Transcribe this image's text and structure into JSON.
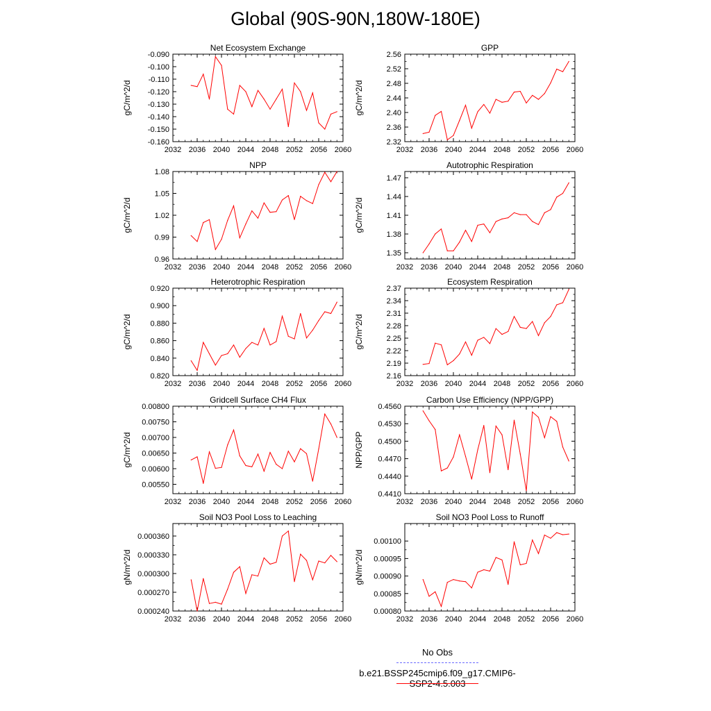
{
  "title": "Global (90S-90N,180W-180E)",
  "legend": {
    "obs_label": "No Obs",
    "obs_color": "#6a6aff",
    "run_label": "b.e21.BSSP245cmip6.f09_g17.CMIP6-SSP2-4.5.003",
    "run_color": "#ff0000"
  },
  "chart_data": [
    {
      "type": "line",
      "title": "Net Ecosystem Exchange",
      "ylabel": "gC/m^2/d",
      "xlim": [
        2032,
        2060
      ],
      "xticks": [
        "2032",
        "2036",
        "2040",
        "2044",
        "2048",
        "2052",
        "2056",
        "2060"
      ],
      "ylim": [
        -0.16,
        -0.09
      ],
      "yticks": [
        "-0.090",
        "-0.100",
        "-0.110",
        "-0.120",
        "-0.130",
        "-0.140",
        "-0.150",
        "-0.160"
      ],
      "x": [
        2035,
        2036,
        2037,
        2038,
        2039,
        2040,
        2041,
        2042,
        2043,
        2044,
        2045,
        2046,
        2047,
        2048,
        2049,
        2050,
        2051,
        2052,
        2053,
        2054,
        2055,
        2056,
        2057,
        2058,
        2059
      ],
      "series": [
        {
          "values": [
            -0.115,
            -0.116,
            -0.106,
            -0.126,
            -0.092,
            -0.099,
            -0.134,
            -0.138,
            -0.115,
            -0.12,
            -0.132,
            -0.119,
            -0.126,
            -0.134,
            -0.126,
            -0.118,
            -0.148,
            -0.113,
            -0.12,
            -0.135,
            -0.121,
            -0.145,
            -0.15,
            -0.138,
            -0.136
          ],
          "color": "#ff0000"
        }
      ]
    },
    {
      "type": "line",
      "title": "GPP",
      "ylabel": "gC/m^2/d",
      "xlim": [
        2032,
        2060
      ],
      "xticks": [
        "2032",
        "2036",
        "2040",
        "2044",
        "2048",
        "2052",
        "2056",
        "2060"
      ],
      "ylim": [
        2.32,
        2.56
      ],
      "yticks": [
        "2.56",
        "2.52",
        "2.48",
        "2.44",
        "2.40",
        "2.36",
        "2.32"
      ],
      "x": [
        2035,
        2036,
        2037,
        2038,
        2039,
        2040,
        2041,
        2042,
        2043,
        2044,
        2045,
        2046,
        2047,
        2048,
        2049,
        2050,
        2051,
        2052,
        2053,
        2054,
        2055,
        2056,
        2057,
        2058,
        2059
      ],
      "series": [
        {
          "values": [
            2.342,
            2.346,
            2.392,
            2.403,
            2.325,
            2.337,
            2.378,
            2.42,
            2.357,
            2.402,
            2.422,
            2.398,
            2.436,
            2.428,
            2.431,
            2.456,
            2.458,
            2.426,
            2.447,
            2.436,
            2.452,
            2.481,
            2.519,
            2.512,
            2.54
          ],
          "color": "#ff0000"
        }
      ]
    },
    {
      "type": "line",
      "title": "NPP",
      "ylabel": "gC/m^2/d",
      "xlim": [
        2032,
        2060
      ],
      "xticks": [
        "2032",
        "2036",
        "2040",
        "2044",
        "2048",
        "2052",
        "2056",
        "2060"
      ],
      "ylim": [
        0.96,
        1.08
      ],
      "yticks": [
        "1.08",
        "1.05",
        "1.02",
        "0.99",
        "0.96"
      ],
      "x": [
        2035,
        2036,
        2037,
        2038,
        2039,
        2040,
        2041,
        2042,
        2043,
        2044,
        2045,
        2046,
        2047,
        2048,
        2049,
        2050,
        2051,
        2052,
        2053,
        2054,
        2055,
        2056,
        2057,
        2058,
        2059
      ],
      "series": [
        {
          "values": [
            0.992,
            0.984,
            1.01,
            1.014,
            0.973,
            0.987,
            1.013,
            1.033,
            0.989,
            1.008,
            1.026,
            1.016,
            1.037,
            1.024,
            1.025,
            1.041,
            1.047,
            1.014,
            1.046,
            1.04,
            1.036,
            1.062,
            1.079,
            1.066,
            1.08
          ],
          "color": "#ff0000"
        }
      ]
    },
    {
      "type": "line",
      "title": "Autotrophic Respiration",
      "ylabel": "gC/m^2/d",
      "xlim": [
        2032,
        2060
      ],
      "xticks": [
        "2032",
        "2036",
        "2040",
        "2044",
        "2048",
        "2052",
        "2056",
        "2060"
      ],
      "ylim": [
        1.34,
        1.48
      ],
      "yticks": [
        "1.47",
        "1.44",
        "1.41",
        "1.38",
        "1.35"
      ],
      "x": [
        2035,
        2036,
        2037,
        2038,
        2039,
        2040,
        2041,
        2042,
        2043,
        2044,
        2045,
        2046,
        2047,
        2048,
        2049,
        2050,
        2051,
        2052,
        2053,
        2054,
        2055,
        2056,
        2057,
        2058,
        2059
      ],
      "series": [
        {
          "values": [
            1.35,
            1.364,
            1.38,
            1.388,
            1.353,
            1.353,
            1.367,
            1.386,
            1.368,
            1.394,
            1.396,
            1.382,
            1.4,
            1.404,
            1.406,
            1.414,
            1.411,
            1.411,
            1.4,
            1.395,
            1.414,
            1.419,
            1.439,
            1.445,
            1.462
          ],
          "color": "#ff0000"
        }
      ]
    },
    {
      "type": "line",
      "title": "Heterotrophic Respiration",
      "ylabel": "gC/m^2/d",
      "xlim": [
        2032,
        2060
      ],
      "xticks": [
        "2032",
        "2036",
        "2040",
        "2044",
        "2048",
        "2052",
        "2056",
        "2060"
      ],
      "ylim": [
        0.82,
        0.92
      ],
      "yticks": [
        "0.920",
        "0.900",
        "0.880",
        "0.860",
        "0.840",
        "0.820"
      ],
      "x": [
        2035,
        2036,
        2037,
        2038,
        2039,
        2040,
        2041,
        2042,
        2043,
        2044,
        2045,
        2046,
        2047,
        2048,
        2049,
        2050,
        2051,
        2052,
        2053,
        2054,
        2055,
        2056,
        2057,
        2058,
        2059
      ],
      "series": [
        {
          "values": [
            0.837,
            0.826,
            0.858,
            0.845,
            0.832,
            0.843,
            0.845,
            0.855,
            0.841,
            0.851,
            0.858,
            0.855,
            0.874,
            0.855,
            0.859,
            0.888,
            0.865,
            0.862,
            0.891,
            0.863,
            0.872,
            0.883,
            0.893,
            0.891,
            0.904
          ],
          "color": "#ff0000"
        }
      ]
    },
    {
      "type": "line",
      "title": "Ecosystem Respiration",
      "ylabel": "gC/m^2/d",
      "xlim": [
        2032,
        2060
      ],
      "xticks": [
        "2032",
        "2036",
        "2040",
        "2044",
        "2048",
        "2052",
        "2056",
        "2060"
      ],
      "ylim": [
        2.16,
        2.37
      ],
      "yticks": [
        "2.37",
        "2.34",
        "2.31",
        "2.28",
        "2.25",
        "2.22",
        "2.19",
        "2.16"
      ],
      "x": [
        2035,
        2036,
        2037,
        2038,
        2039,
        2040,
        2041,
        2042,
        2043,
        2044,
        2045,
        2046,
        2047,
        2048,
        2049,
        2050,
        2051,
        2052,
        2053,
        2054,
        2055,
        2056,
        2057,
        2058,
        2059
      ],
      "series": [
        {
          "values": [
            2.187,
            2.189,
            2.238,
            2.234,
            2.186,
            2.196,
            2.212,
            2.241,
            2.209,
            2.245,
            2.252,
            2.237,
            2.273,
            2.259,
            2.266,
            2.302,
            2.276,
            2.273,
            2.29,
            2.256,
            2.287,
            2.302,
            2.33,
            2.335,
            2.367
          ],
          "color": "#ff0000"
        }
      ]
    },
    {
      "type": "line",
      "title": "Gridcell Surface CH4 Flux",
      "ylabel": "gC/m^2/d",
      "xlim": [
        2032,
        2060
      ],
      "xticks": [
        "2032",
        "2036",
        "2040",
        "2044",
        "2048",
        "2052",
        "2056",
        "2060"
      ],
      "ylim": [
        0.0052,
        0.008
      ],
      "yticks": [
        "0.00800",
        "0.00750",
        "0.00700",
        "0.00650",
        "0.00600",
        "0.00550"
      ],
      "x": [
        2035,
        2036,
        2037,
        2038,
        2039,
        2040,
        2041,
        2042,
        2043,
        2044,
        2045,
        2046,
        2047,
        2048,
        2049,
        2050,
        2051,
        2052,
        2053,
        2054,
        2055,
        2056,
        2057,
        2058,
        2059
      ],
      "series": [
        {
          "values": [
            0.00628,
            0.00638,
            0.00553,
            0.00654,
            0.00601,
            0.00604,
            0.00676,
            0.00724,
            0.00641,
            0.0061,
            0.00606,
            0.00647,
            0.00592,
            0.00652,
            0.00614,
            0.006,
            0.00656,
            0.00622,
            0.00664,
            0.00648,
            0.0056,
            0.00663,
            0.00775,
            0.00743,
            0.007
          ],
          "color": "#ff0000"
        }
      ]
    },
    {
      "type": "line",
      "title": "Carbon Use Efficiency (NPP/GPP)",
      "ylabel": "NPP/GPP",
      "xlim": [
        2032,
        2060
      ],
      "xticks": [
        "2032",
        "2036",
        "2040",
        "2044",
        "2048",
        "2052",
        "2056",
        "2060"
      ],
      "ylim": [
        0.441,
        0.456
      ],
      "yticks": [
        "0.4560",
        "0.4530",
        "0.4500",
        "0.4470",
        "0.4440",
        "0.4410"
      ],
      "x": [
        2035,
        2036,
        2037,
        2038,
        2039,
        2040,
        2041,
        2042,
        2043,
        2044,
        2045,
        2046,
        2047,
        2048,
        2049,
        2050,
        2051,
        2052,
        2053,
        2054,
        2055,
        2056,
        2057,
        2058,
        2059
      ],
      "series": [
        {
          "values": [
            0.4552,
            0.4535,
            0.452,
            0.4449,
            0.4454,
            0.4473,
            0.4511,
            0.4474,
            0.4435,
            0.4485,
            0.4527,
            0.4446,
            0.4526,
            0.4511,
            0.4451,
            0.4536,
            0.4478,
            0.4415,
            0.455,
            0.4541,
            0.4506,
            0.4542,
            0.4534,
            0.449,
            0.4466
          ],
          "color": "#ff0000"
        }
      ]
    },
    {
      "type": "line",
      "title": "Soil NO3 Pool Loss to Leaching",
      "ylabel": "gN/m^2/d",
      "xlim": [
        2032,
        2060
      ],
      "xticks": [
        "2032",
        "2036",
        "2040",
        "2044",
        "2048",
        "2052",
        "2056",
        "2060"
      ],
      "ylim": [
        0.00024,
        0.00038
      ],
      "yticks": [
        "0.000360",
        "0.000330",
        "0.000300",
        "0.000270",
        "0.000240"
      ],
      "x": [
        2035,
        2036,
        2037,
        2038,
        2039,
        2040,
        2041,
        2042,
        2043,
        2044,
        2045,
        2046,
        2047,
        2048,
        2049,
        2050,
        2051,
        2052,
        2053,
        2054,
        2055,
        2056,
        2057,
        2058,
        2059
      ],
      "series": [
        {
          "values": [
            0.00029,
            0.00024,
            0.000292,
            0.000252,
            0.000254,
            0.000251,
            0.000275,
            0.000302,
            0.000311,
            0.000268,
            0.000298,
            0.000296,
            0.000325,
            0.000315,
            0.000318,
            0.00036,
            0.000368,
            0.000287,
            0.000331,
            0.000321,
            0.00029,
            0.00032,
            0.000317,
            0.000329,
            0.000319
          ],
          "color": "#ff0000"
        }
      ]
    },
    {
      "type": "line",
      "title": "Soil NO3 Pool Loss to Runoff",
      "ylabel": "gN/m^2/d",
      "xlim": [
        2032,
        2060
      ],
      "xticks": [
        "2032",
        "2036",
        "2040",
        "2044",
        "2048",
        "2052",
        "2056",
        "2060"
      ],
      "ylim": [
        0.0008,
        0.00105
      ],
      "yticks": [
        "0.00100",
        "0.00095",
        "0.00090",
        "0.00085",
        "0.00080"
      ],
      "x": [
        2035,
        2036,
        2037,
        2038,
        2039,
        2040,
        2041,
        2042,
        2043,
        2044,
        2045,
        2046,
        2047,
        2048,
        2049,
        2050,
        2051,
        2052,
        2053,
        2054,
        2055,
        2056,
        2057,
        2058,
        2059
      ],
      "series": [
        {
          "values": [
            0.00089,
            0.000842,
            0.000855,
            0.000813,
            0.000882,
            0.00089,
            0.000886,
            0.000884,
            0.000866,
            0.000911,
            0.000918,
            0.000914,
            0.000953,
            0.000946,
            0.000876,
            0.000998,
            0.000932,
            0.000936,
            0.001003,
            0.000964,
            0.001017,
            0.001008,
            0.001024,
            0.001018,
            0.00102
          ],
          "color": "#ff0000"
        }
      ]
    }
  ]
}
